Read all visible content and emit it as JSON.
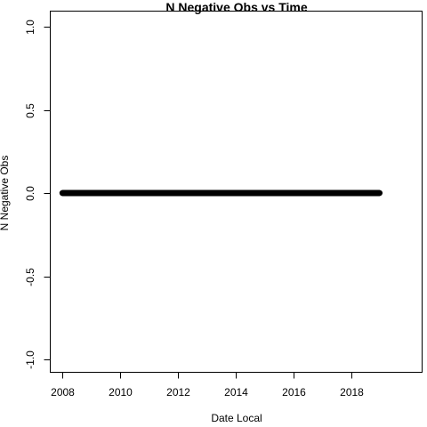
{
  "chart_data": {
    "type": "scatter",
    "title": "N Negative Obs vs Time",
    "xlabel": "Date Local",
    "ylabel": "N Negative Obs",
    "xlim": [
      "2008-01-01",
      "2019-01-01"
    ],
    "ylim": [
      -1.0,
      1.0
    ],
    "x_ticks": [
      "2008",
      "2010",
      "2012",
      "2014",
      "2016",
      "2018"
    ],
    "y_ticks": [
      "-1.0",
      "-0.5",
      "0.0",
      "0.5",
      "1.0"
    ],
    "grid": false,
    "legend": "none",
    "series": [
      {
        "x_start": "2008-01-01",
        "x_end": "2018-12-31",
        "x_step": "daily",
        "y_value": 0,
        "marker": "filled-circle",
        "color": "#000000"
      }
    ]
  }
}
